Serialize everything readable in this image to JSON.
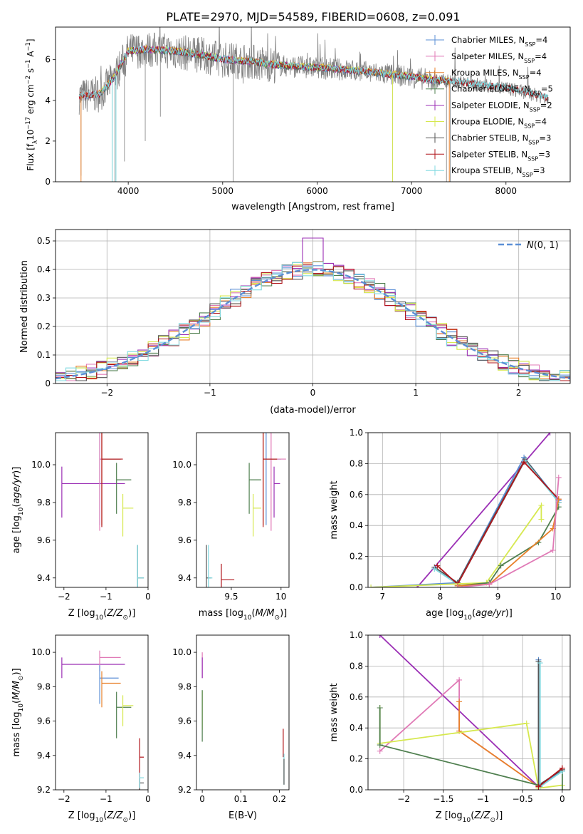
{
  "title": "PLATE=2970, MJD=54589, FIBERID=0608, z=0.091",
  "palette": {
    "chabrier_miles": "#5b8fd6",
    "salpeter_miles": "#e07ab6",
    "kroupa_miles": "#e8812b",
    "chabrier_elodie": "#4f7f4f",
    "salpeter_elodie": "#9b2fb5",
    "kroupa_elodie": "#d6e84e",
    "chabrier_stelib": "#555555",
    "salpeter_stelib": "#b0151b",
    "kroupa_stelib": "#7fd9e0",
    "data": "#7f7f7f",
    "normal": "#5b8fd6"
  },
  "chart_data": [
    {
      "type": "line",
      "xlabel": "wavelength [Angstrom, rest frame]",
      "ylabel": "Flux [f_λ 10^-17 erg cm^-2 s^-1 A^-1]",
      "xlim": [
        3230,
        8680
      ],
      "ylim": [
        0,
        7.6
      ],
      "xticks": [
        4000,
        5000,
        6000,
        7000,
        8000
      ],
      "yticks": [
        0,
        2,
        4,
        6
      ],
      "grid": false,
      "legend_position": "right",
      "legend": [
        {
          "key": "chabrier_miles",
          "label": "Chabrier MILES, N_SSP=4"
        },
        {
          "key": "salpeter_miles",
          "label": "Salpeter MILES, N_SSP=4"
        },
        {
          "key": "kroupa_miles",
          "label": "Kroupa MILES, N_SSP=4"
        },
        {
          "key": "chabrier_elodie",
          "label": "Chabrier ELODIE, N_SSP=5"
        },
        {
          "key": "salpeter_elodie",
          "label": "Salpeter ELODIE, N_SSP=2"
        },
        {
          "key": "kroupa_elodie",
          "label": "Kroupa ELODIE, N_SSP=4"
        },
        {
          "key": "chabrier_stelib",
          "label": "Chabrier STELIB, N_SSP=3"
        },
        {
          "key": "salpeter_stelib",
          "label": "Salpeter STELIB, N_SSP=3"
        },
        {
          "key": "kroupa_stelib",
          "label": "Kroupa STELIB, N_SSP=3"
        }
      ],
      "continuum": {
        "x": [
          3500,
          3700,
          3850,
          4000,
          4200,
          4500,
          4800,
          5000,
          5300,
          5600,
          6000,
          6300,
          6600,
          6900,
          7200,
          7500,
          7800,
          8000,
          8200,
          8450
        ],
        "y": [
          4.2,
          4.3,
          5.1,
          6.4,
          6.5,
          6.4,
          6.2,
          6.0,
          5.9,
          5.7,
          5.6,
          5.5,
          5.35,
          5.2,
          5.0,
          4.9,
          4.7,
          4.6,
          4.4,
          4.1
        ]
      }
    },
    {
      "type": "line",
      "xlabel": "(data-model)/error",
      "ylabel": "Normed distribution",
      "xlim": [
        -2.5,
        2.5
      ],
      "ylim": [
        0,
        0.54
      ],
      "xticks": [
        -2,
        -1,
        0,
        1,
        2
      ],
      "yticks": [
        0.0,
        0.1,
        0.2,
        0.3,
        0.4,
        0.5
      ],
      "grid": true,
      "legend_position": "top-right",
      "legend_label": "N(0,1)"
    },
    {
      "type": "scatter",
      "xlabel": "Z [log10(Z/Z☉)]",
      "ylabel": "age [log10(age/yr)]",
      "xlim": [
        -2.2,
        0.0
      ],
      "ylim": [
        9.35,
        10.17
      ],
      "xticks": [
        -2,
        -1,
        0
      ],
      "yticks": [
        9.4,
        9.6,
        9.8,
        10.0
      ],
      "points": [
        {
          "key": "salpeter_elodie",
          "x": -2.05,
          "y": 9.9,
          "xerr": 1.5,
          "yerr": 0.18
        },
        {
          "key": "chabrier_miles",
          "x": -1.15,
          "y": 10.03,
          "xerr": 0.5,
          "yerr": 0.35
        },
        {
          "key": "salpeter_miles",
          "x": -1.15,
          "y": 10.03,
          "xerr": 0.5,
          "yerr": 0.38
        },
        {
          "key": "kroupa_miles",
          "x": -1.1,
          "y": 10.03,
          "xerr": 0.45,
          "yerr": 0.35
        },
        {
          "key": "salpeter_stelib",
          "x": -1.1,
          "y": 10.03,
          "xerr": 0.5,
          "yerr": 0.36
        },
        {
          "key": "chabrier_elodie",
          "x": -0.75,
          "y": 9.92,
          "xerr": 0.35,
          "yerr": 0.18
        },
        {
          "key": "kroupa_elodie",
          "x": -0.6,
          "y": 9.77,
          "xerr": 0.25,
          "yerr": 0.15
        },
        {
          "key": "chabrier_stelib",
          "x": -0.25,
          "y": 9.4,
          "xerr": 0.15,
          "yerr": 0.35
        },
        {
          "key": "kroupa_stelib",
          "x": -0.25,
          "y": 9.4,
          "xerr": 0.15,
          "yerr": 0.35
        }
      ]
    },
    {
      "type": "scatter",
      "xlabel": "mass [log10(M/M☉)]",
      "ylabel": "",
      "xlim": [
        9.15,
        10.08
      ],
      "ylim": [
        9.35,
        10.17
      ],
      "xticks": [
        9.5,
        10.0
      ],
      "yticks": [
        9.4,
        9.6,
        9.8,
        10.0
      ],
      "points": [
        {
          "key": "chabrier_miles",
          "x": 9.85,
          "y": 10.03,
          "xerr": 0.15,
          "yerr": 0.35
        },
        {
          "key": "salpeter_miles",
          "x": 9.9,
          "y": 10.03,
          "xerr": 0.15,
          "yerr": 0.38
        },
        {
          "key": "kroupa_miles",
          "x": 9.82,
          "y": 10.03,
          "xerr": 0.14,
          "yerr": 0.35
        },
        {
          "key": "salpeter_stelib",
          "x": 9.82,
          "y": 10.03,
          "xerr": 0.14,
          "yerr": 0.36
        },
        {
          "key": "chabrier_elodie",
          "x": 9.68,
          "y": 9.92,
          "xerr": 0.12,
          "yerr": 0.18
        },
        {
          "key": "kroupa_elodie",
          "x": 9.72,
          "y": 9.77,
          "xerr": 0.08,
          "yerr": 0.15
        },
        {
          "key": "salpeter_elodie",
          "x": 9.93,
          "y": 9.9,
          "xerr": 0.06,
          "yerr": 0.18
        },
        {
          "key": "chabrier_stelib",
          "x": 9.25,
          "y": 9.4,
          "xerr": 0.05,
          "yerr": 0.35
        },
        {
          "key": "kroupa_stelib",
          "x": 9.27,
          "y": 9.4,
          "xerr": 0.04,
          "yerr": 0.35
        },
        {
          "key": "salpeter_stelib",
          "x": 9.4,
          "y": 9.39,
          "xerr": 0.13,
          "yerr": 0.17
        }
      ]
    },
    {
      "type": "line",
      "xlabel": "age [log10(age/yr)]",
      "ylabel": "mass weight",
      "xlim": [
        6.75,
        10.25
      ],
      "ylim": [
        0,
        1.0
      ],
      "xticks": [
        7,
        8,
        9,
        10
      ],
      "yticks": [
        0.0,
        0.2,
        0.4,
        0.6,
        0.8,
        1.0
      ],
      "grid": true,
      "series": [
        {
          "key": "salpeter_elodie",
          "x": [
            7.6,
            9.9
          ],
          "y": [
            0.0,
            1.0
          ]
        },
        {
          "key": "chabrier_miles",
          "x": [
            6.8,
            8.3,
            9.45,
            10.05
          ],
          "y": [
            0.0,
            0.03,
            0.84,
            0.56
          ]
        },
        {
          "key": "chabrier_stelib",
          "x": [
            7.9,
            8.3,
            9.47,
            10.05
          ],
          "y": [
            0.13,
            0.03,
            0.83,
            0.55
          ]
        },
        {
          "key": "kroupa_stelib",
          "x": [
            7.9,
            8.3,
            9.47,
            10.05
          ],
          "y": [
            0.12,
            0.02,
            0.82,
            0.55
          ]
        },
        {
          "key": "salpeter_stelib",
          "x": [
            7.95,
            8.3,
            9.45,
            10.05
          ],
          "y": [
            0.14,
            0.02,
            0.81,
            0.57
          ]
        },
        {
          "key": "kroupa_elodie",
          "x": [
            6.8,
            8.8,
            9.75,
            9.75
          ],
          "y": [
            0.0,
            0.03,
            0.53,
            0.44
          ]
        },
        {
          "key": "chabrier_elodie",
          "x": [
            8.3,
            8.85,
            9.05,
            9.7,
            10.05
          ],
          "y": [
            0.01,
            0.03,
            0.14,
            0.29,
            0.52
          ]
        },
        {
          "key": "kroupa_miles",
          "x": [
            8.3,
            8.85,
            9.95,
            10.05
          ],
          "y": [
            0.01,
            0.02,
            0.38,
            0.57
          ]
        },
        {
          "key": "salpeter_miles",
          "x": [
            8.3,
            8.85,
            9.95,
            10.05
          ],
          "y": [
            0.0,
            0.02,
            0.24,
            0.71
          ]
        }
      ]
    },
    {
      "type": "scatter",
      "xlabel": "Z [log10(Z/Z☉)]",
      "ylabel": "mass [log10(M/M☉)]",
      "xlim": [
        -2.2,
        0.0
      ],
      "ylim": [
        9.2,
        10.1
      ],
      "xticks": [
        -2,
        -1,
        0
      ],
      "yticks": [
        9.2,
        9.4,
        9.6,
        9.8,
        10.0
      ],
      "points": [
        {
          "key": "salpeter_elodie",
          "x": -2.05,
          "y": 9.93,
          "xerr": 1.5,
          "yerr": 0.08
        },
        {
          "key": "salpeter_miles",
          "x": -1.15,
          "y": 9.97,
          "xerr": 0.5,
          "yerr": 0.08
        },
        {
          "key": "chabrier_miles",
          "x": -1.15,
          "y": 9.85,
          "xerr": 0.45,
          "yerr": 0.15
        },
        {
          "key": "kroupa_miles",
          "x": -1.1,
          "y": 9.82,
          "xerr": 0.45,
          "yerr": 0.14
        },
        {
          "key": "chabrier_elodie",
          "x": -0.75,
          "y": 9.68,
          "xerr": 0.35,
          "yerr": 0.18
        },
        {
          "key": "kroupa_elodie",
          "x": -0.6,
          "y": 9.69,
          "xerr": 0.25,
          "yerr": 0.12
        },
        {
          "key": "salpeter_stelib",
          "x": -0.2,
          "y": 9.39,
          "xerr": 0.1,
          "yerr": 0.22
        },
        {
          "key": "chabrier_stelib",
          "x": -0.2,
          "y": 9.24,
          "xerr": 0.1,
          "yerr": 0.06
        },
        {
          "key": "kroupa_stelib",
          "x": -0.2,
          "y": 9.27,
          "xerr": 0.1,
          "yerr": 0.06
        }
      ]
    },
    {
      "type": "scatter",
      "xlabel": "E(B-V)",
      "ylabel": "",
      "xlim": [
        -0.015,
        0.225
      ],
      "ylim": [
        9.2,
        10.1
      ],
      "xticks": [
        0.0,
        0.1,
        0.2
      ],
      "yticks": [
        9.2,
        9.4,
        9.6,
        9.8,
        10.0
      ],
      "points": [
        {
          "key": "salpeter_miles",
          "x": 0.0,
          "y": 9.95,
          "xerr": 0.0,
          "yerr": 0.1
        },
        {
          "key": "kroupa_elodie",
          "x": 0.0,
          "y": 9.7,
          "xerr": 0.0,
          "yerr": 0.15
        },
        {
          "key": "chabrier_elodie",
          "x": 0.0,
          "y": 9.68,
          "xerr": 0.0,
          "yerr": 0.2
        },
        {
          "key": "salpeter_elodie",
          "x": 0.0,
          "y": 9.93,
          "xerr": 0.0,
          "yerr": 0.08
        },
        {
          "key": "salpeter_stelib",
          "x": 0.21,
          "y": 9.5,
          "xerr": 0.0,
          "yerr": 0.11
        },
        {
          "key": "kroupa_stelib",
          "x": 0.212,
          "y": 9.35,
          "xerr": 0.0,
          "yerr": 0.12
        },
        {
          "key": "chabrier_stelib",
          "x": 0.212,
          "y": 9.33,
          "xerr": 0.0,
          "yerr": 0.1
        }
      ]
    },
    {
      "type": "line",
      "xlabel": "Z [log10(Z/Z☉)]",
      "ylabel": "mass weight",
      "xlim": [
        -2.45,
        0.1
      ],
      "ylim": [
        0,
        1.0
      ],
      "xticks": [
        -2.0,
        -1.5,
        -1.0,
        -0.5,
        0.0
      ],
      "yticks": [
        0.0,
        0.2,
        0.4,
        0.6,
        0.8,
        1.0
      ],
      "grid": true,
      "series": [
        {
          "key": "salpeter_elodie",
          "x": [
            -2.3,
            -0.3,
            0.0
          ],
          "y": [
            1.0,
            0.02,
            0.14
          ]
        },
        {
          "key": "salpeter_miles",
          "x": [
            -2.3,
            -1.3,
            -1.3,
            -0.3,
            0.0
          ],
          "y": [
            0.25,
            0.71,
            0.38,
            0.02,
            0.12
          ]
        },
        {
          "key": "kroupa_miles",
          "x": [
            -1.3,
            -1.3,
            -0.3,
            0.0
          ],
          "y": [
            0.57,
            0.38,
            0.02,
            0.14
          ]
        },
        {
          "key": "kroupa_elodie",
          "x": [
            -2.3,
            -2.3,
            -0.45,
            -0.3,
            0.0,
            0.0
          ],
          "y": [
            0.53,
            0.3,
            0.43,
            0.01,
            0.03,
            0.0
          ]
        },
        {
          "key": "chabrier_elodie",
          "x": [
            -2.3,
            -2.3,
            -0.3,
            0.0,
            0.0
          ],
          "y": [
            0.53,
            0.29,
            0.03,
            0.12,
            0.0
          ]
        },
        {
          "key": "chabrier_miles",
          "x": [
            -0.3,
            -0.3,
            0.0
          ],
          "y": [
            0.84,
            0.03,
            0.12
          ]
        },
        {
          "key": "chabrier_stelib",
          "x": [
            -0.3,
            -0.3,
            0.0
          ],
          "y": [
            0.83,
            0.03,
            0.13
          ]
        },
        {
          "key": "kroupa_stelib",
          "x": [
            -0.28,
            -0.28,
            0.0
          ],
          "y": [
            0.82,
            0.02,
            0.12
          ]
        },
        {
          "key": "salpeter_stelib",
          "x": [
            -0.3,
            0.0
          ],
          "y": [
            0.02,
            0.14
          ]
        }
      ]
    }
  ]
}
